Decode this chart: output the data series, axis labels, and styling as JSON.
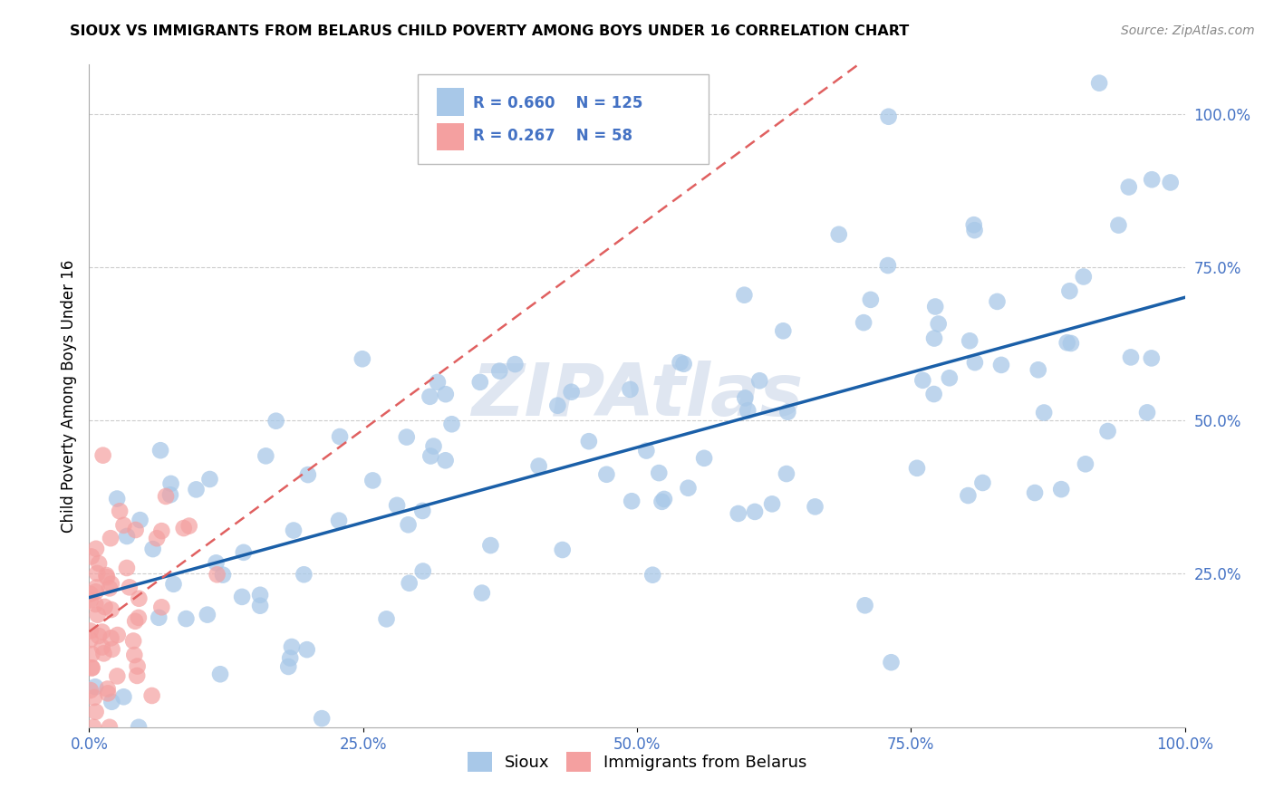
{
  "title": "SIOUX VS IMMIGRANTS FROM BELARUS CHILD POVERTY AMONG BOYS UNDER 16 CORRELATION CHART",
  "source": "Source: ZipAtlas.com",
  "ylabel": "Child Poverty Among Boys Under 16",
  "watermark": "ZIPAtlas",
  "sioux_R": 0.66,
  "sioux_N": 125,
  "belarus_R": 0.267,
  "belarus_N": 58,
  "xticklabels": [
    "0.0%",
    "25.0%",
    "50.0%",
    "75.0%",
    "100.0%"
  ],
  "yticklabels": [
    "25.0%",
    "50.0%",
    "75.0%",
    "100.0%"
  ],
  "sioux_color": "#a8c8e8",
  "belarus_color": "#f4a0a0",
  "sioux_line_color": "#1a5fa8",
  "belarus_line_color": "#e06060",
  "tick_color": "#4472c4",
  "background_color": "#ffffff",
  "grid_color": "#cccccc"
}
